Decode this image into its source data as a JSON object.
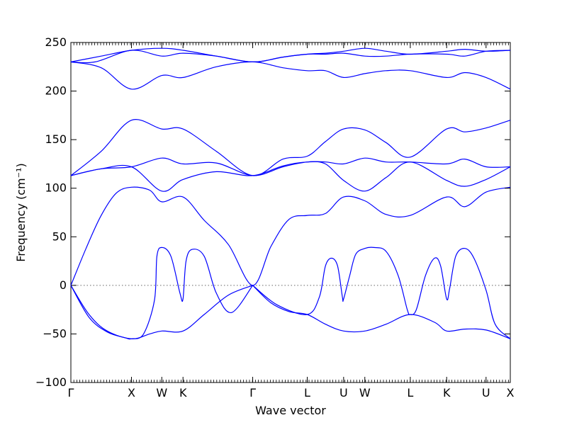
{
  "chart_data": {
    "type": "line",
    "title": "",
    "xlabel": "Wave vector",
    "ylabel": "Frequency (cm⁻¹)",
    "ylim": [
      -100,
      250
    ],
    "yticks": [
      -100,
      -50,
      0,
      50,
      100,
      150,
      200,
      250
    ],
    "xlim": [
      0,
      7.25
    ],
    "xticks": [
      {
        "label": "Γ",
        "x": 0
      },
      {
        "label": "X",
        "x": 1
      },
      {
        "label": "W",
        "x": 1.5
      },
      {
        "label": "K",
        "x": 1.85
      },
      {
        "label": "Γ",
        "x": 3
      },
      {
        "label": "L",
        "x": 3.9
      },
      {
        "label": "U",
        "x": 4.5
      },
      {
        "label": "W",
        "x": 4.85
      },
      {
        "label": "L",
        "x": 5.6
      },
      {
        "label": "K",
        "x": 6.2
      },
      {
        "label": "U",
        "x": 6.85
      },
      {
        "label": "X",
        "x": 7.25
      }
    ],
    "zero_line": true,
    "line_color": "#0000ff",
    "series": [
      {
        "x": [
          0,
          0.5,
          1,
          1.5,
          1.85,
          2.4,
          3,
          3.5,
          3.9,
          4.2,
          4.5,
          4.85,
          5.2,
          5.6,
          6.2,
          6.5,
          6.85,
          7.25
        ],
        "y": [
          230,
          236,
          242,
          244,
          242,
          236,
          230,
          235,
          238,
          239,
          241,
          244,
          241,
          238,
          241,
          243,
          241,
          242
        ]
      },
      {
        "x": [
          0,
          0.5,
          1,
          1.5,
          1.85,
          2.4,
          3,
          3.5,
          3.9,
          4.2,
          4.5,
          4.85,
          5.2,
          5.6,
          6.2,
          6.5,
          6.85,
          7.25
        ],
        "y": [
          230,
          224,
          202,
          216,
          214,
          225,
          230,
          224,
          221,
          221,
          214,
          218,
          221,
          221,
          214,
          219,
          214,
          202
        ]
      },
      {
        "x": [
          0,
          0.4,
          1,
          1.5,
          1.85,
          2.4,
          3,
          3.5,
          3.9,
          4.2,
          4.5,
          4.85,
          5.2,
          5.6,
          6.2,
          6.5,
          6.85,
          7.25
        ],
        "y": [
          230,
          230,
          242,
          236,
          239,
          236,
          230,
          235,
          238,
          238,
          239,
          236,
          236,
          238,
          238,
          236,
          241,
          242
        ]
      },
      {
        "x": [
          0,
          0.5,
          1,
          1.5,
          1.85,
          2.4,
          3,
          3.5,
          3.9,
          4.2,
          4.5,
          4.85,
          5.2,
          5.6,
          6.2,
          6.5,
          6.85,
          7.25
        ],
        "y": [
          113,
          138,
          170,
          161,
          161,
          138,
          113,
          130,
          133,
          148,
          161,
          160,
          147,
          132,
          161,
          158,
          162,
          170
        ]
      },
      {
        "x": [
          0,
          0.5,
          1,
          1.5,
          1.85,
          2.4,
          3,
          3.5,
          3.9,
          4.2,
          4.5,
          4.85,
          5.2,
          5.6,
          6.2,
          6.5,
          6.85,
          7.25
        ],
        "y": [
          113,
          120,
          122,
          131,
          125,
          126,
          113,
          122,
          127,
          127,
          125,
          131,
          127,
          127,
          125,
          130,
          122,
          122
        ]
      },
      {
        "x": [
          0,
          0.5,
          1,
          1.5,
          1.85,
          2.4,
          3,
          3.5,
          3.9,
          4.2,
          4.5,
          4.85,
          5.2,
          5.6,
          6.2,
          6.5,
          6.85,
          7.25
        ],
        "y": [
          113,
          120,
          122,
          97,
          109,
          117,
          113,
          123,
          127,
          125,
          108,
          97,
          111,
          127,
          108,
          102,
          109,
          122
        ]
      },
      {
        "x": [
          0,
          0.25,
          0.5,
          0.75,
          1,
          1.3,
          1.5,
          1.85,
          2.2,
          2.6,
          3,
          3.3,
          3.6,
          3.9,
          4.2,
          4.5,
          4.85,
          5.2,
          5.6,
          6.2,
          6.5,
          6.85,
          7.25
        ],
        "y": [
          0,
          38,
          72,
          95,
          101,
          98,
          86,
          91,
          67,
          42,
          0,
          40,
          68,
          72,
          74,
          91,
          87,
          73,
          72,
          91,
          81,
          96,
          101
        ]
      },
      {
        "x": [
          0,
          0.3,
          0.6,
          1,
          1.3,
          1.5,
          1.85,
          2.2,
          2.6,
          3
        ],
        "y": [
          0,
          -30,
          -47,
          -55,
          -50,
          -47,
          -47,
          -30,
          -10,
          0
        ]
      },
      {
        "x": [
          3,
          3.3,
          3.6,
          3.9,
          4.2,
          4.5,
          4.85,
          5.2,
          5.6,
          6,
          6.2,
          6.5,
          6.85,
          7.25
        ],
        "y": [
          0,
          -18,
          -27,
          -30,
          -40,
          -47,
          -47,
          -40,
          -30,
          -38,
          -47,
          -45,
          -46,
          -55
        ]
      },
      {
        "x": [
          0,
          0.3,
          0.6,
          0.9,
          1,
          1.2,
          1.38,
          1.42,
          1.5,
          1.65,
          1.8,
          1.85,
          1.9,
          2,
          2.2,
          2.4,
          2.65,
          3
        ],
        "y": [
          0,
          -33,
          -48,
          -54,
          -55,
          -50,
          -15,
          30,
          39,
          30,
          -8,
          -14,
          25,
          37,
          30,
          -8,
          -28,
          0
        ]
      },
      {
        "x": [
          3,
          3.4,
          3.9,
          4.1,
          4.2,
          4.3,
          4.4,
          4.48,
          4.5,
          4.6,
          4.7,
          4.85,
          5.0,
          5.2,
          5.4,
          5.55,
          5.6,
          5.7,
          5.85,
          6.0,
          6.1,
          6.2,
          6.25,
          6.35,
          6.5,
          6.65,
          6.85,
          7.0,
          7.25
        ],
        "y": [
          0,
          -20,
          -30,
          -12,
          20,
          28,
          20,
          -12,
          -14,
          10,
          32,
          38,
          39,
          35,
          10,
          -25,
          -30,
          -25,
          10,
          28,
          20,
          -14,
          -3,
          30,
          38,
          28,
          -5,
          -40,
          -55
        ]
      }
    ]
  }
}
